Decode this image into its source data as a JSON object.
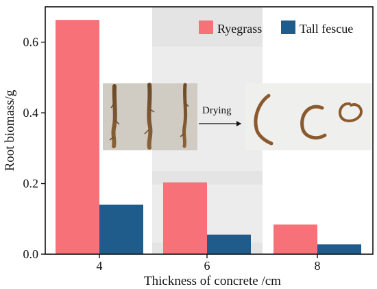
{
  "chart_data": {
    "type": "bar",
    "categories": [
      "4",
      "6",
      "8"
    ],
    "series": [
      {
        "name": "Ryegrass",
        "values": [
          0.663,
          0.203,
          0.084
        ],
        "color": "#f77178"
      },
      {
        "name": "Tall fescue",
        "values": [
          0.14,
          0.055,
          0.028
        ],
        "color": "#1f5c8c"
      }
    ],
    "xlabel": "Thickness of concrete /cm",
    "ylabel": "Root biomass/g",
    "ylim": [
      0,
      0.7
    ],
    "yticks": [
      "0.0",
      "0.2",
      "0.4",
      "0.6"
    ],
    "legend_position": "top-right",
    "grid": false,
    "highlight_band_category": "6",
    "inset": {
      "left_photo": "three fresh roots",
      "right_photo": "three curled dried roots",
      "arrow_label": "Drying"
    }
  }
}
